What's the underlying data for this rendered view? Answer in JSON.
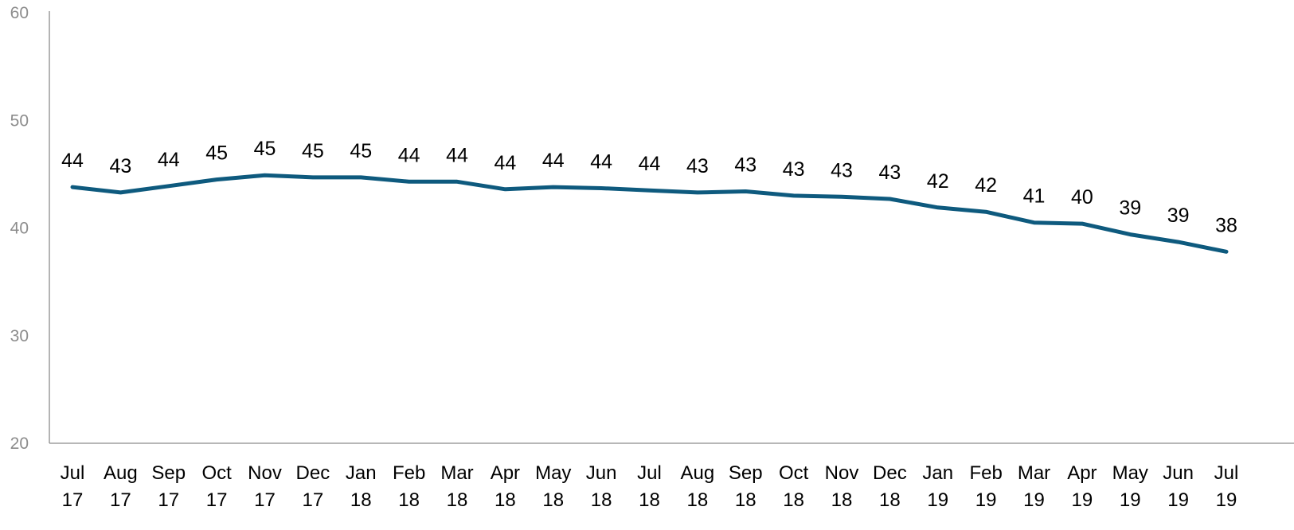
{
  "chart_data": {
    "type": "line",
    "title": "",
    "xlabel": "",
    "ylabel": "",
    "ylim": [
      20,
      60
    ],
    "yticks": [
      20,
      30,
      40,
      50,
      60
    ],
    "grid": false,
    "legend": "none",
    "categories": [
      [
        "Jul",
        "17"
      ],
      [
        "Aug",
        "17"
      ],
      [
        "Sep",
        "17"
      ],
      [
        "Oct",
        "17"
      ],
      [
        "Nov",
        "17"
      ],
      [
        "Dec",
        "17"
      ],
      [
        "Jan",
        "18"
      ],
      [
        "Feb",
        "18"
      ],
      [
        "Mar",
        "18"
      ],
      [
        "Apr",
        "18"
      ],
      [
        "May",
        "18"
      ],
      [
        "Jun",
        "18"
      ],
      [
        "Jul",
        "18"
      ],
      [
        "Aug",
        "18"
      ],
      [
        "Sep",
        "18"
      ],
      [
        "Oct",
        "18"
      ],
      [
        "Nov",
        "18"
      ],
      [
        "Dec",
        "18"
      ],
      [
        "Jan",
        "19"
      ],
      [
        "Feb",
        "19"
      ],
      [
        "Mar",
        "19"
      ],
      [
        "Apr",
        "19"
      ],
      [
        "May",
        "19"
      ],
      [
        "Jun",
        "19"
      ],
      [
        "Jul",
        "19"
      ]
    ],
    "series": [
      {
        "color": "#0e5a7e",
        "values": [
          43.8,
          43.3,
          43.9,
          44.5,
          44.9,
          44.7,
          44.7,
          44.3,
          44.3,
          43.6,
          43.8,
          43.7,
          43.5,
          43.3,
          43.4,
          43.0,
          42.9,
          42.7,
          41.9,
          41.5,
          40.5,
          40.4,
          39.4,
          38.7,
          37.8
        ],
        "data_labels": [
          "44",
          "43",
          "44",
          "45",
          "45",
          "45",
          "45",
          "44",
          "44",
          "44",
          "44",
          "44",
          "44",
          "43",
          "43",
          "43",
          "43",
          "43",
          "42",
          "42",
          "41",
          "40",
          "39",
          "39",
          "38"
        ]
      }
    ]
  }
}
